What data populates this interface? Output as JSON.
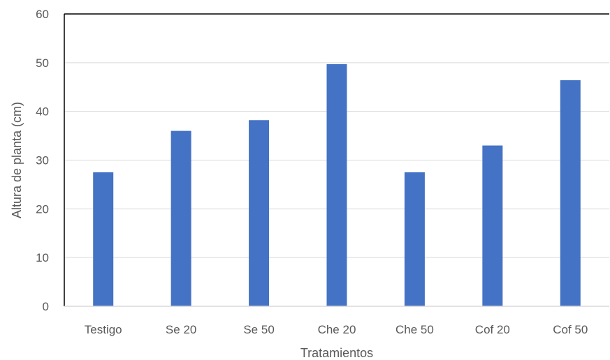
{
  "chart_data": {
    "type": "bar",
    "title": "",
    "xlabel": "Tratamientos",
    "ylabel": "Altura de planta (cm)",
    "categories": [
      "Testigo",
      "Se 20",
      "Se 50",
      "Che 20",
      "Che 50",
      "Cof 20",
      "Cof 50"
    ],
    "values": [
      27.5,
      36,
      38.2,
      49.7,
      27.5,
      33,
      46.4
    ],
    "ylim": [
      0,
      60
    ],
    "yticks": [
      "0",
      "10",
      "20",
      "30",
      "40",
      "50",
      "60"
    ],
    "grid": true,
    "legend": "none",
    "colors": {
      "bar": "#4472C4",
      "grid": "#D9D9D9",
      "axis": "#000000",
      "text": "#595959"
    }
  }
}
